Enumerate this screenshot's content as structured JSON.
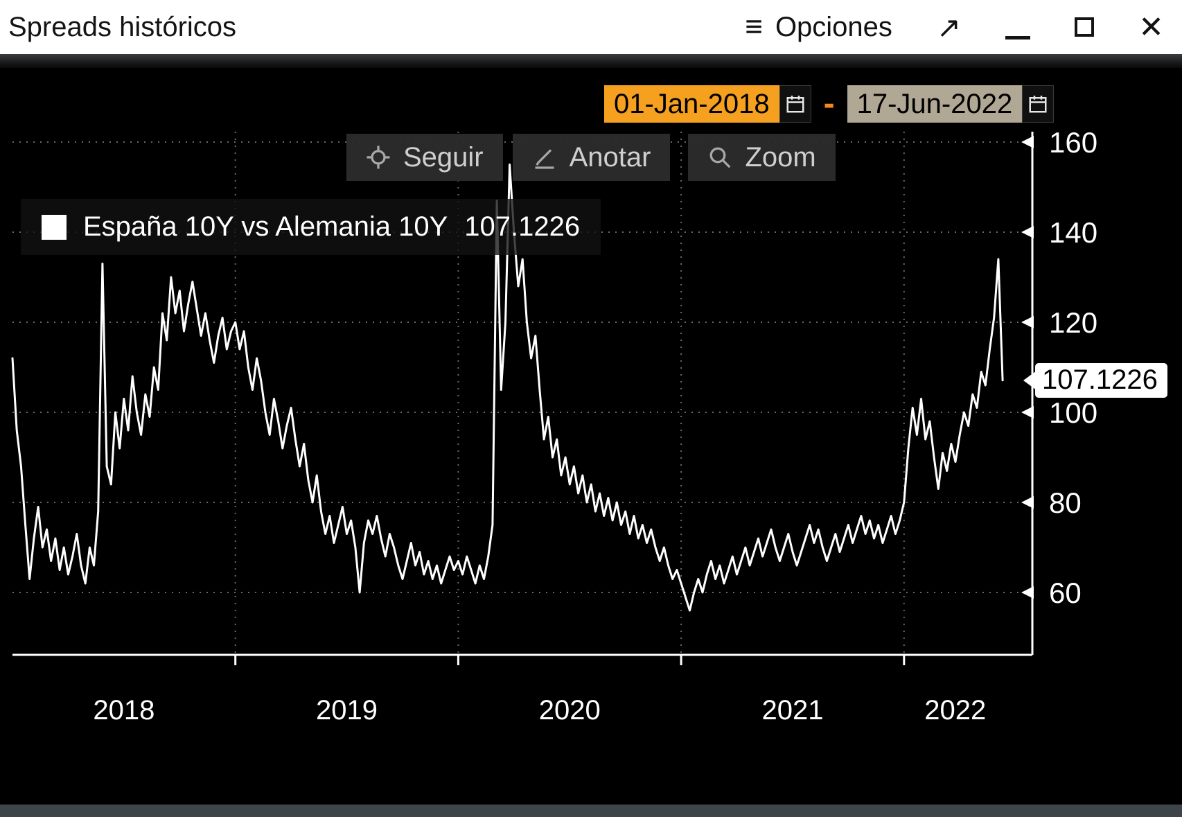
{
  "window": {
    "title": "Spreads históricos",
    "menu_icon": "≡",
    "menu_label": "Opciones",
    "popout_icon": "↗",
    "close_icon": "✕"
  },
  "chart": {
    "date_from": "01-Jan-2018",
    "date_separator": "-",
    "date_to": "17-Jun-2022",
    "buttons": [
      {
        "icon": "crosshair",
        "label": "Seguir"
      },
      {
        "icon": "pencil",
        "label": "Anotar"
      },
      {
        "icon": "magnifier",
        "label": "Zoom"
      }
    ],
    "legend": {
      "label": "España 10Y vs Alemania 10Y",
      "value": "107.1226"
    },
    "last_value_tag": "107.1226",
    "colors": {
      "line": "#ffffff",
      "grid": "#6a6a6a",
      "date_from_bg": "#f5a01e",
      "date_to_bg": "#b0a795",
      "separator": "#f5891d",
      "panel_bg": "#000000"
    }
  },
  "chart_data": {
    "type": "line",
    "title": "España 10Y vs Alemania 10Y",
    "xlabel": "",
    "ylabel": "",
    "y_ticks": [
      160,
      140,
      120,
      100,
      80,
      60
    ],
    "ylim": [
      46,
      172
    ],
    "x_tick_labels": [
      "2018",
      "2019",
      "2020",
      "2021",
      "2022"
    ],
    "x_start_year": 2018.0,
    "x_end_year": 2022.46,
    "points_per_year": 52,
    "grid": "dotted",
    "legend_position": "top-left",
    "series": [
      {
        "name": "España 10Y vs Alemania 10Y",
        "last_value": 107.1226,
        "values": [
          112,
          96,
          88,
          75,
          63,
          72,
          79,
          70,
          74,
          67,
          72,
          65,
          70,
          64,
          68,
          73,
          66,
          62,
          70,
          66,
          78,
          133,
          88,
          84,
          100,
          92,
          103,
          96,
          108,
          100,
          95,
          104,
          99,
          110,
          105,
          122,
          116,
          130,
          122,
          127,
          118,
          124,
          129,
          123,
          117,
          122,
          116,
          111,
          117,
          121,
          114,
          118,
          120,
          114,
          118,
          110,
          105,
          112,
          107,
          100,
          95,
          103,
          98,
          92,
          97,
          101,
          94,
          88,
          93,
          85,
          80,
          86,
          78,
          73,
          77,
          71,
          75,
          79,
          73,
          76,
          70,
          60,
          71,
          76,
          73,
          77,
          72,
          68,
          73,
          70,
          66,
          63,
          67,
          71,
          66,
          69,
          64,
          67,
          63,
          66,
          62,
          65,
          68,
          65,
          67,
          64,
          68,
          65,
          62,
          66,
          63,
          68,
          75,
          147,
          105,
          120,
          155,
          140,
          128,
          134,
          120,
          112,
          117,
          105,
          94,
          99,
          90,
          94,
          86,
          90,
          84,
          88,
          82,
          86,
          80,
          84,
          78,
          82,
          77,
          81,
          76,
          80,
          75,
          78,
          73,
          77,
          72,
          75,
          71,
          74,
          70,
          67,
          70,
          66,
          63,
          65,
          62,
          59,
          56,
          60,
          63,
          60,
          64,
          67,
          63,
          66,
          62,
          65,
          68,
          64,
          67,
          70,
          66,
          69,
          72,
          68,
          71,
          74,
          70,
          67,
          70,
          73,
          69,
          66,
          69,
          72,
          75,
          71,
          74,
          70,
          67,
          70,
          73,
          69,
          72,
          75,
          71,
          74,
          77,
          73,
          76,
          72,
          75,
          71,
          74,
          77,
          73,
          76,
          80,
          92,
          101,
          95,
          103,
          94,
          98,
          90,
          83,
          91,
          87,
          93,
          89,
          95,
          100,
          97,
          104,
          101,
          109,
          106,
          114,
          121,
          134,
          107.12
        ]
      }
    ]
  }
}
